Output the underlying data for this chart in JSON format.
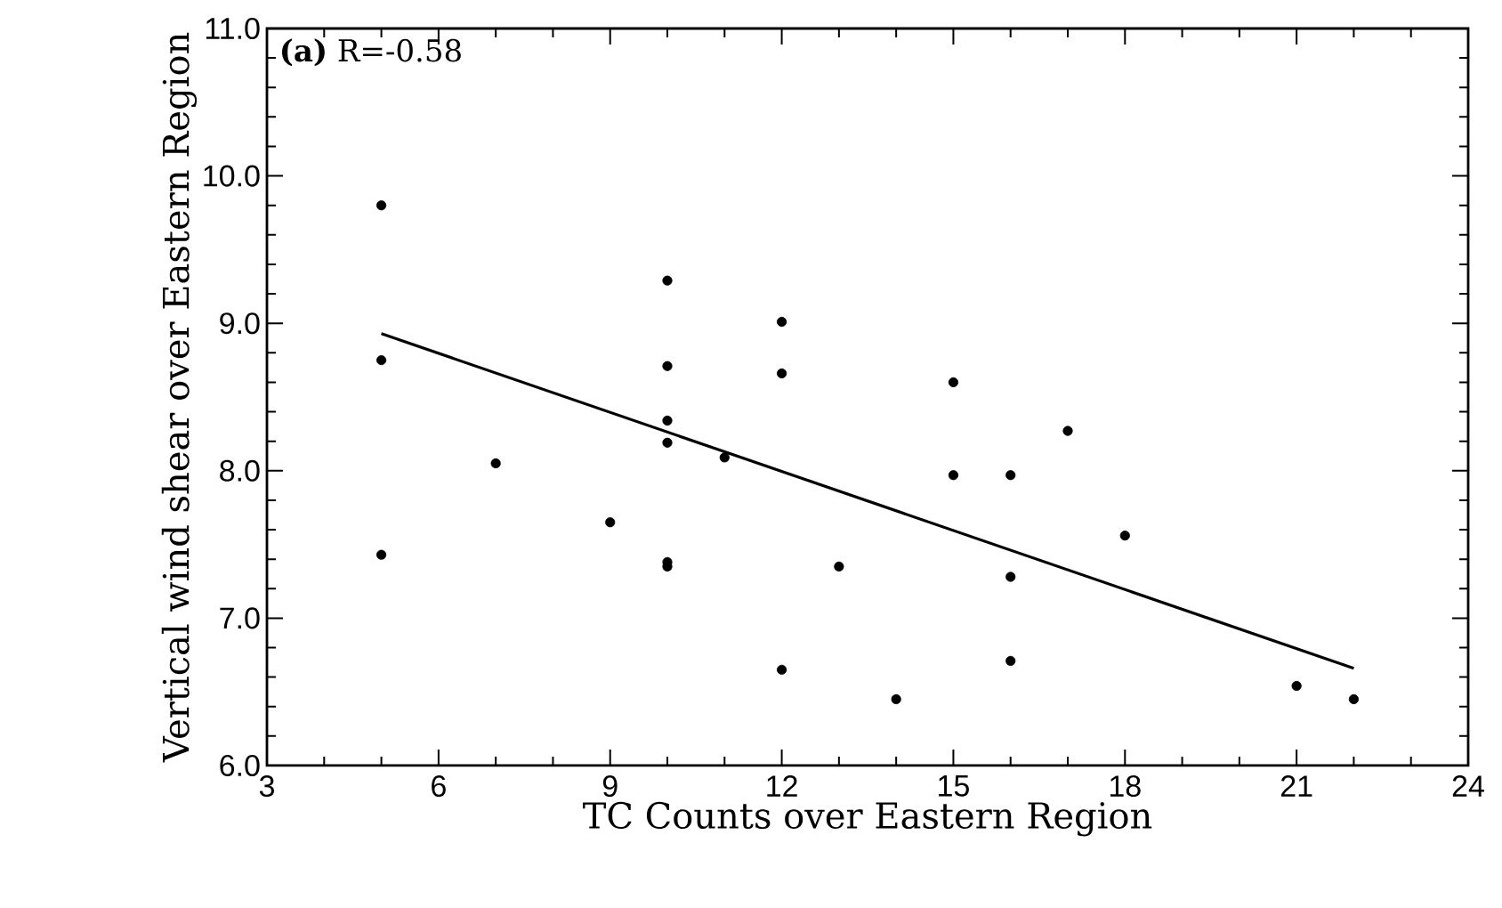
{
  "chart_data": {
    "type": "scatter",
    "xlabel": "TC Counts over Eastern Region",
    "ylabel": "Vertical wind shear over Eastern Region",
    "annotations": [
      "**(a)** R=-0.58"
    ],
    "xlim": [
      3,
      24
    ],
    "xticks": [
      3,
      6,
      9,
      12,
      15,
      18,
      21,
      24
    ],
    "ylim": [
      6,
      11
    ],
    "yticks": [
      {
        "value": 6,
        "label": "6.0"
      },
      {
        "value": 7,
        "label": "7.0"
      },
      {
        "value": 8,
        "label": "8.0"
      },
      {
        "value": 9,
        "label": "9.0"
      },
      {
        "value": 10,
        "label": "10.0"
      },
      {
        "value": 11,
        "label": "11.0"
      }
    ],
    "grid": false,
    "series": [
      {
        "marker": "circle",
        "color": "#000000",
        "x": [
          5,
          5,
          5,
          7,
          9,
          10,
          10,
          10,
          10,
          10,
          10,
          11,
          12,
          12,
          12,
          13,
          14,
          15,
          15,
          16,
          16,
          16,
          17,
          18,
          21,
          22
        ],
        "values": [
          9.8,
          8.75,
          7.43,
          8.05,
          7.65,
          9.29,
          8.71,
          8.34,
          8.19,
          7.38,
          7.35,
          8.09,
          9.01,
          8.66,
          6.65,
          7.35,
          6.45,
          8.6,
          7.97,
          7.97,
          7.28,
          6.71,
          8.27,
          7.56,
          6.54,
          6.45
        ]
      },
      {
        "type": "line",
        "marker": "none",
        "color": "#000000",
        "line_style": "solid",
        "x": [
          5,
          22
        ],
        "values": [
          8.93,
          6.66
        ]
      }
    ]
  }
}
